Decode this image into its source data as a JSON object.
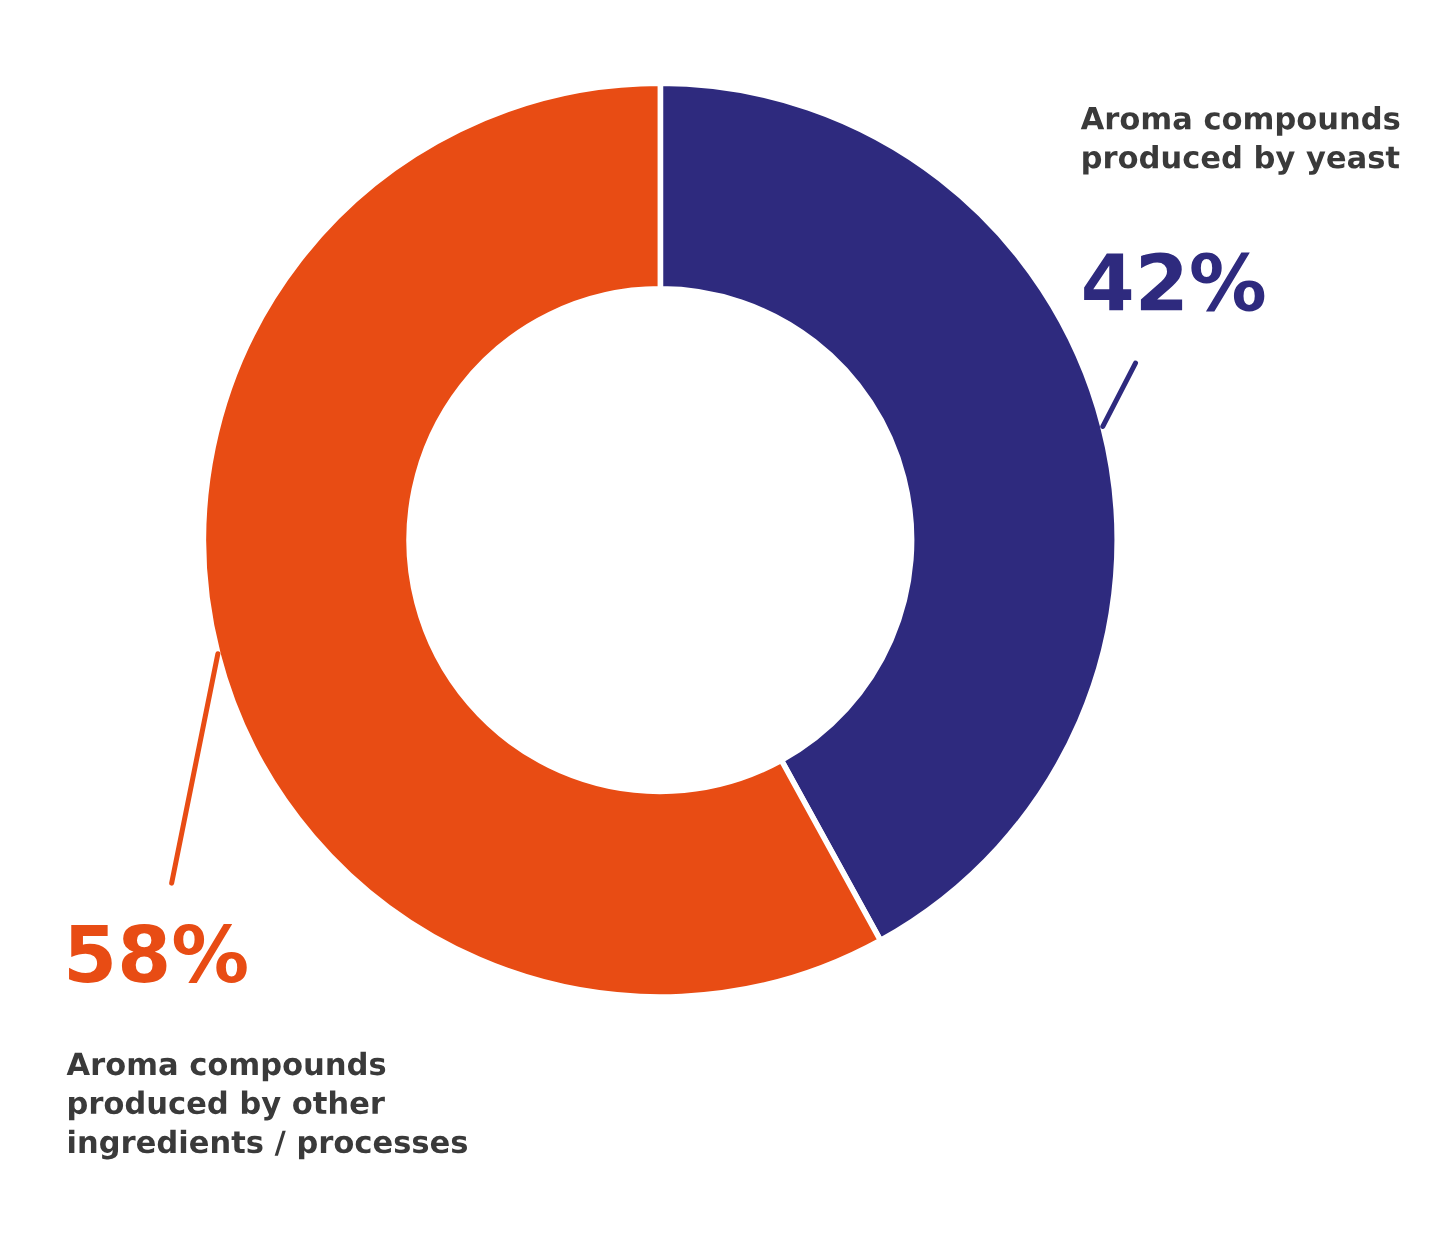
{
  "chart_data": {
    "type": "donut",
    "categories": [
      "Aroma compounds\nproduced by yeast",
      "Aroma compounds\nproduced by other\ningredients / processes"
    ],
    "values": [
      42,
      58
    ],
    "colors": [
      "#2e2a7e",
      "#e84c14"
    ],
    "value_labels": [
      "42%",
      "58%"
    ]
  }
}
